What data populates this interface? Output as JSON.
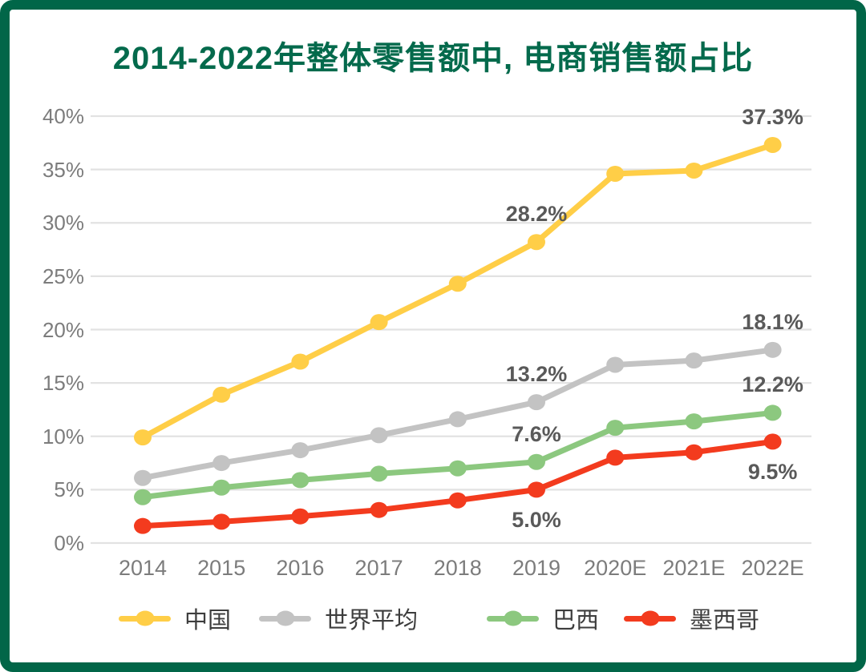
{
  "colors": {
    "border_green": "#016648",
    "title_green": "#046A4C",
    "grid": "#E2E2E2",
    "axis_text": "#7C7C7C",
    "data_label_text": "#595959",
    "legend_text": "#3D3D3D"
  },
  "chart_data": {
    "type": "line",
    "title": "2014-2022年整体零售额中, 电商销售额占比",
    "categories": [
      "2014",
      "2015",
      "2016",
      "2017",
      "2018",
      "2019",
      "2020E",
      "2021E",
      "2022E"
    ],
    "series": [
      {
        "key": "china",
        "name": "中国",
        "color": "#FFCE47",
        "values": [
          9.9,
          13.9,
          17.0,
          20.7,
          24.3,
          28.2,
          34.6,
          34.9,
          37.3
        ]
      },
      {
        "key": "world-average",
        "name": "世界平均",
        "color": "#C3C3C3",
        "values": [
          6.1,
          7.5,
          8.7,
          10.1,
          11.6,
          13.2,
          16.7,
          17.1,
          18.1
        ]
      },
      {
        "key": "brazil",
        "name": "巴西",
        "color": "#8CC87F",
        "values": [
          4.3,
          5.2,
          5.9,
          6.5,
          7.0,
          7.6,
          10.8,
          11.4,
          12.2
        ]
      },
      {
        "key": "mexico",
        "name": "墨西哥",
        "color": "#F33B1E",
        "values": [
          1.6,
          2.0,
          2.5,
          3.1,
          4.0,
          5.0,
          8.0,
          8.5,
          9.5
        ]
      }
    ],
    "xlabel": "",
    "ylabel": "",
    "ylim": [
      0,
      40
    ],
    "ytick_step": 5,
    "ytick_suffix": "%",
    "grid": true,
    "legend_position": "bottom",
    "annotations": [
      {
        "series_index": 0,
        "category": "2019",
        "label": "28.2%",
        "placement": "above"
      },
      {
        "series_index": 0,
        "category": "2022E",
        "label": "37.3%",
        "placement": "above"
      },
      {
        "series_index": 1,
        "category": "2019",
        "label": "13.2%",
        "placement": "above"
      },
      {
        "series_index": 1,
        "category": "2022E",
        "label": "18.1%",
        "placement": "above"
      },
      {
        "series_index": 2,
        "category": "2019",
        "label": "7.6%",
        "placement": "above"
      },
      {
        "series_index": 2,
        "category": "2022E",
        "label": "12.2%",
        "placement": "above"
      },
      {
        "series_index": 3,
        "category": "2019",
        "label": "5.0%",
        "placement": "below"
      },
      {
        "series_index": 3,
        "category": "2022E",
        "label": "9.5%",
        "placement": "below"
      }
    ]
  }
}
